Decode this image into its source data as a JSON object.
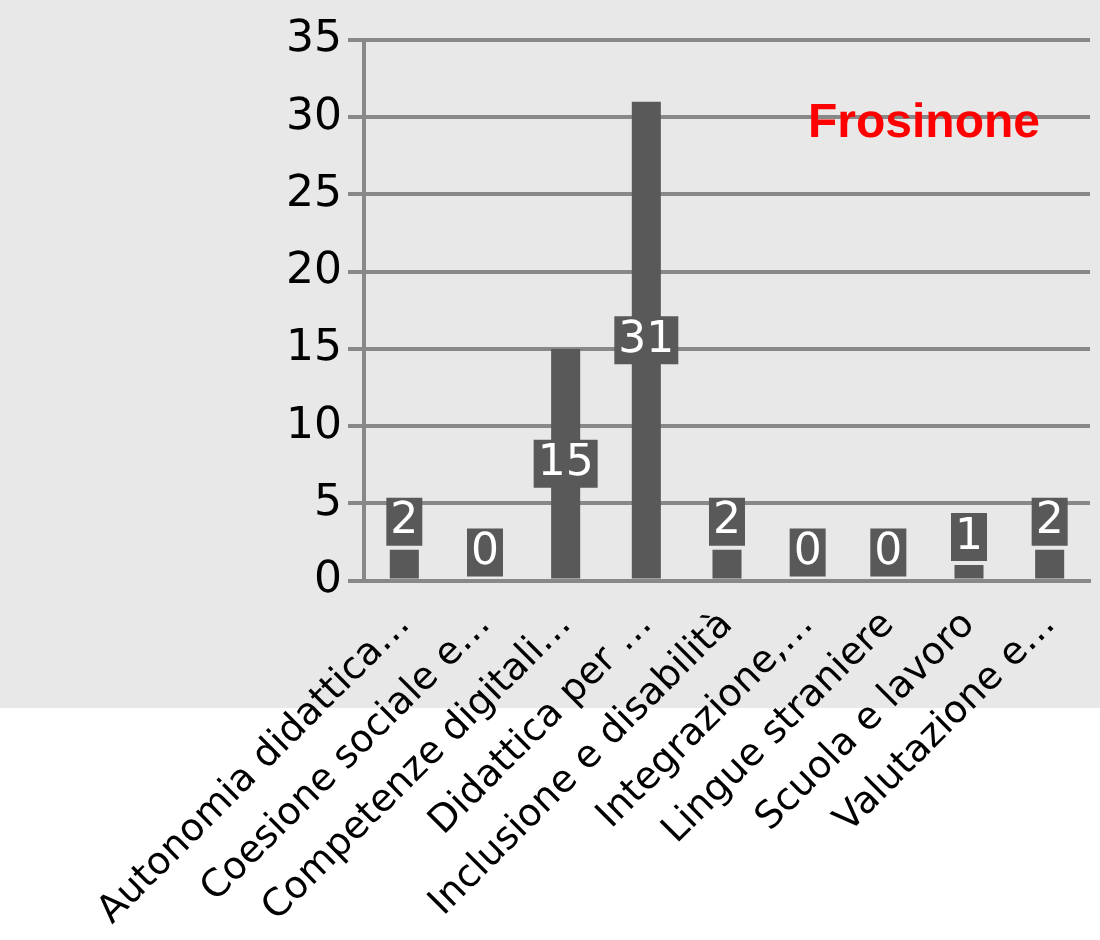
{
  "chart_data": {
    "type": "bar",
    "title": "Frosinone",
    "categories": [
      "Autonomia didattica…",
      "Coesione sociale e…",
      "Competenze digitali…",
      "Didattica per …",
      "Inclusione e disabilità",
      "Integrazione,…",
      "Lingue straniere",
      "Scuola e lavoro",
      "Valutazione e…"
    ],
    "values": [
      2,
      0,
      15,
      31,
      2,
      0,
      0,
      1,
      2
    ],
    "color": "#595959",
    "ylim": [
      0,
      35
    ],
    "yticks": [
      0,
      5,
      10,
      15,
      20,
      25,
      30,
      35
    ],
    "grid": "y",
    "data_labels": true,
    "legend": false
  }
}
